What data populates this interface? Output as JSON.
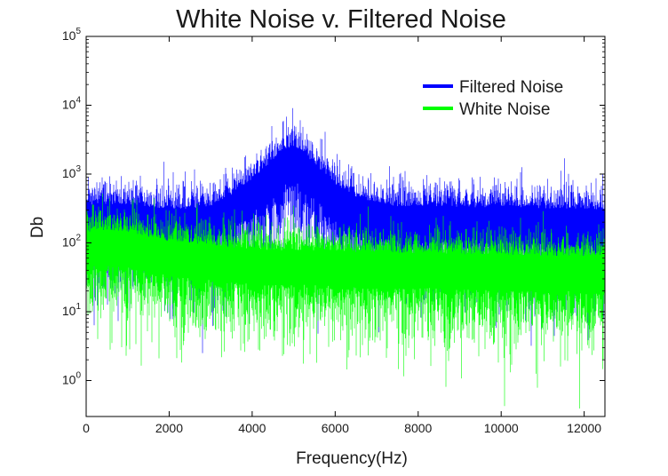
{
  "chart_data": {
    "type": "line",
    "title": "White Noise v. Filtered Noise",
    "xlabel": "Frequency(Hz)",
    "ylabel": "Db",
    "xlim": [
      0,
      12500
    ],
    "ylim": [
      0.3,
      100000
    ],
    "yscale": "log",
    "x_ticks": [
      0,
      2000,
      4000,
      6000,
      8000,
      10000,
      12000
    ],
    "y_ticks": [
      {
        "value": 1,
        "base": "10",
        "exp": "0"
      },
      {
        "value": 10,
        "base": "10",
        "exp": "1"
      },
      {
        "value": 100,
        "base": "10",
        "exp": "2"
      },
      {
        "value": 1000,
        "base": "10",
        "exp": "3"
      },
      {
        "value": 10000,
        "base": "10",
        "exp": "4"
      },
      {
        "value": 100000,
        "base": "10",
        "exp": "5"
      }
    ],
    "grid": false,
    "legend_position": "top-right",
    "series": [
      {
        "name": "Filtered Noise",
        "color": "#0000ff",
        "x": [
          0,
          500,
          1000,
          1500,
          2000,
          2500,
          3000,
          3500,
          4000,
          4500,
          4800,
          5000,
          5200,
          5500,
          6000,
          6500,
          7000,
          7500,
          8000,
          8500,
          9000,
          9500,
          10000,
          10500,
          11000,
          11500,
          12000,
          12500
        ],
        "y": [
          250,
          260,
          250,
          230,
          220,
          220,
          240,
          350,
          600,
          1100,
          1600,
          1800,
          1500,
          1000,
          500,
          330,
          260,
          240,
          240,
          230,
          230,
          230,
          230,
          230,
          220,
          220,
          220,
          200
        ]
      },
      {
        "name": "White Noise",
        "color": "#00ff00",
        "x": [
          0,
          500,
          1000,
          1500,
          2000,
          2500,
          3000,
          3500,
          4000,
          4500,
          5000,
          5500,
          6000,
          6500,
          7000,
          7500,
          8000,
          8500,
          9000,
          9500,
          10000,
          10500,
          11000,
          11500,
          12000,
          12500
        ],
        "y": [
          100,
          110,
          100,
          85,
          75,
          70,
          65,
          60,
          58,
          55,
          55,
          55,
          55,
          52,
          52,
          50,
          50,
          50,
          48,
          48,
          48,
          46,
          46,
          45,
          45,
          45
        ]
      }
    ]
  }
}
